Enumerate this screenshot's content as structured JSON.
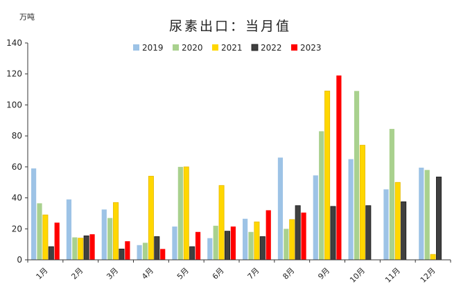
{
  "chart_data": {
    "type": "bar",
    "title": "尿素出口：当月值",
    "unit_label": "万吨",
    "categories": [
      "1月",
      "2月",
      "3月",
      "4月",
      "5月",
      "6月",
      "7月",
      "8月",
      "9月",
      "10月",
      "11月",
      "12月"
    ],
    "ylim": [
      0,
      140
    ],
    "yticks": [
      0,
      20,
      40,
      60,
      80,
      100,
      120,
      140
    ],
    "grid": false,
    "legend_position": "top",
    "series": [
      {
        "name": "2019",
        "color": "#9DC3E6",
        "values": [
          59,
          39,
          32.5,
          9.5,
          21.5,
          14,
          26.5,
          66,
          54.5,
          65,
          45.5,
          59.5
        ]
      },
      {
        "name": "2020",
        "color": "#A9D18E",
        "values": [
          36.5,
          14.5,
          27,
          11,
          60,
          22,
          18,
          20,
          83,
          109,
          84.5,
          58
        ]
      },
      {
        "name": "2021",
        "color": "#FFD700",
        "values": [
          29,
          14,
          37,
          54,
          60,
          48,
          24.5,
          26,
          109,
          74,
          50,
          3.5
        ]
      },
      {
        "name": "2022",
        "color": "#404040",
        "values": [
          8.5,
          15.5,
          7,
          15,
          8.5,
          18.5,
          15,
          35,
          34.5,
          35,
          37.5,
          53.5
        ]
      },
      {
        "name": "2023",
        "color": "#FF0000",
        "values": [
          24,
          16.5,
          12,
          7,
          18,
          21.5,
          32,
          30.5,
          119,
          null,
          null,
          null
        ]
      }
    ]
  }
}
